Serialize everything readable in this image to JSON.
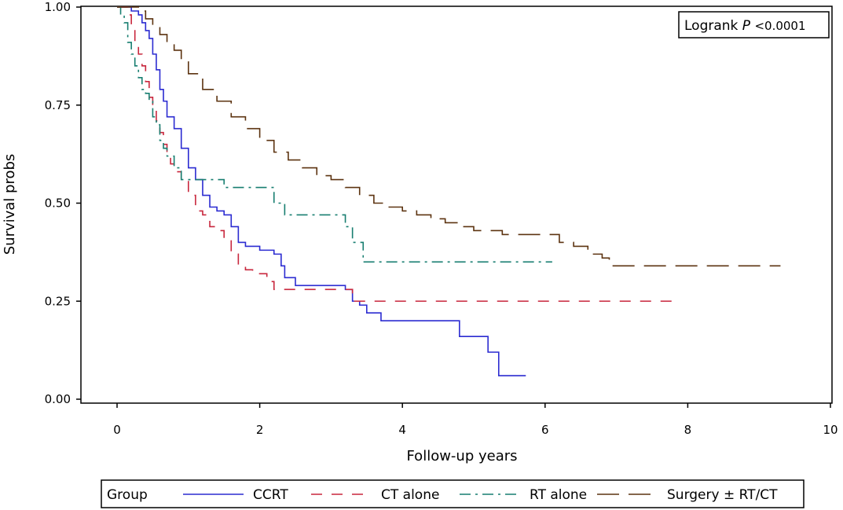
{
  "chart_data": {
    "type": "line",
    "step": true,
    "xlabel": "Follow-up years",
    "ylabel": "Survival probs",
    "xlim": [
      -0.5,
      10
    ],
    "ylim": [
      0,
      1
    ],
    "xticks": [
      0,
      2,
      4,
      6,
      8,
      10
    ],
    "yticks": [
      0.0,
      0.25,
      0.5,
      0.75,
      1.0
    ],
    "xtick_labels": [
      "0",
      "2",
      "4",
      "6",
      "8",
      "10"
    ],
    "ytick_labels": [
      "0.00",
      "0.25",
      "0.50",
      "0.75",
      "1.00"
    ],
    "grid": false,
    "legend_title": "Group",
    "legend_position": "bottom",
    "annotation": {
      "text": "Logrank P <0.0001",
      "label": "Logrank",
      "italic": "P",
      "value": "<0.0001",
      "position": "top-right"
    },
    "series": [
      {
        "name": "CCRT",
        "color": "#2b2bd1",
        "dash": "solid",
        "x": [
          0,
          0.1,
          0.2,
          0.3,
          0.35,
          0.4,
          0.45,
          0.5,
          0.55,
          0.6,
          0.65,
          0.7,
          0.8,
          0.9,
          1.0,
          1.1,
          1.2,
          1.3,
          1.4,
          1.5,
          1.6,
          1.7,
          1.8,
          2.0,
          2.2,
          2.3,
          2.35,
          2.5,
          3.2,
          3.3,
          3.4,
          3.5,
          3.7,
          4.8,
          5.0,
          5.2,
          5.35,
          5.73
        ],
        "y": [
          1.0,
          1.0,
          0.99,
          0.98,
          0.96,
          0.94,
          0.92,
          0.88,
          0.84,
          0.79,
          0.76,
          0.72,
          0.69,
          0.64,
          0.59,
          0.56,
          0.52,
          0.49,
          0.48,
          0.47,
          0.44,
          0.4,
          0.39,
          0.38,
          0.37,
          0.34,
          0.31,
          0.29,
          0.28,
          0.25,
          0.24,
          0.22,
          0.2,
          0.16,
          0.16,
          0.12,
          0.06,
          0.06
        ]
      },
      {
        "name": "CT alone",
        "color": "#c8273d",
        "dash": "14,12",
        "x": [
          0,
          0.1,
          0.15,
          0.2,
          0.25,
          0.3,
          0.35,
          0.4,
          0.45,
          0.5,
          0.55,
          0.6,
          0.65,
          0.7,
          0.75,
          0.8,
          0.9,
          1.0,
          1.1,
          1.2,
          1.3,
          1.4,
          1.5,
          1.6,
          1.7,
          1.8,
          1.9,
          2.1,
          2.2,
          3.2,
          3.3,
          7.9
        ],
        "y": [
          1.0,
          1.0,
          0.98,
          0.95,
          0.91,
          0.88,
          0.85,
          0.81,
          0.77,
          0.74,
          0.71,
          0.68,
          0.65,
          0.63,
          0.6,
          0.58,
          0.56,
          0.52,
          0.48,
          0.47,
          0.44,
          0.43,
          0.41,
          0.37,
          0.34,
          0.33,
          0.32,
          0.3,
          0.28,
          0.28,
          0.25,
          0.25
        ]
      },
      {
        "name": "RT alone",
        "color": "#177e70",
        "dash": "14,6,3,6",
        "x": [
          0,
          0.05,
          0.1,
          0.15,
          0.2,
          0.25,
          0.3,
          0.35,
          0.4,
          0.45,
          0.5,
          0.55,
          0.6,
          0.65,
          0.7,
          0.8,
          0.9,
          1.5,
          2.1,
          2.2,
          2.35,
          3.2,
          3.3,
          3.45,
          6.1
        ],
        "y": [
          1.0,
          0.98,
          0.96,
          0.91,
          0.88,
          0.85,
          0.82,
          0.79,
          0.78,
          0.76,
          0.72,
          0.7,
          0.66,
          0.64,
          0.62,
          0.59,
          0.56,
          0.54,
          0.54,
          0.5,
          0.47,
          0.44,
          0.4,
          0.35,
          0.35
        ]
      },
      {
        "name": "Surgery ± RT/CT",
        "color": "#5c3310",
        "dash": "28,12",
        "x": [
          0,
          0.3,
          0.4,
          0.5,
          0.6,
          0.7,
          0.8,
          0.9,
          1.0,
          1.2,
          1.4,
          1.6,
          1.8,
          2.0,
          2.2,
          2.4,
          2.6,
          2.8,
          3.0,
          3.2,
          3.4,
          3.6,
          3.8,
          4.0,
          4.2,
          4.4,
          4.6,
          4.8,
          5.0,
          5.2,
          5.4,
          6.0,
          6.2,
          6.4,
          6.6,
          6.8,
          6.9,
          9.3
        ],
        "y": [
          1.0,
          0.99,
          0.97,
          0.95,
          0.93,
          0.91,
          0.89,
          0.86,
          0.83,
          0.79,
          0.76,
          0.72,
          0.69,
          0.66,
          0.63,
          0.61,
          0.59,
          0.57,
          0.56,
          0.54,
          0.52,
          0.5,
          0.49,
          0.48,
          0.47,
          0.46,
          0.45,
          0.44,
          0.43,
          0.43,
          0.42,
          0.42,
          0.4,
          0.39,
          0.37,
          0.36,
          0.34,
          0.34
        ]
      }
    ]
  }
}
